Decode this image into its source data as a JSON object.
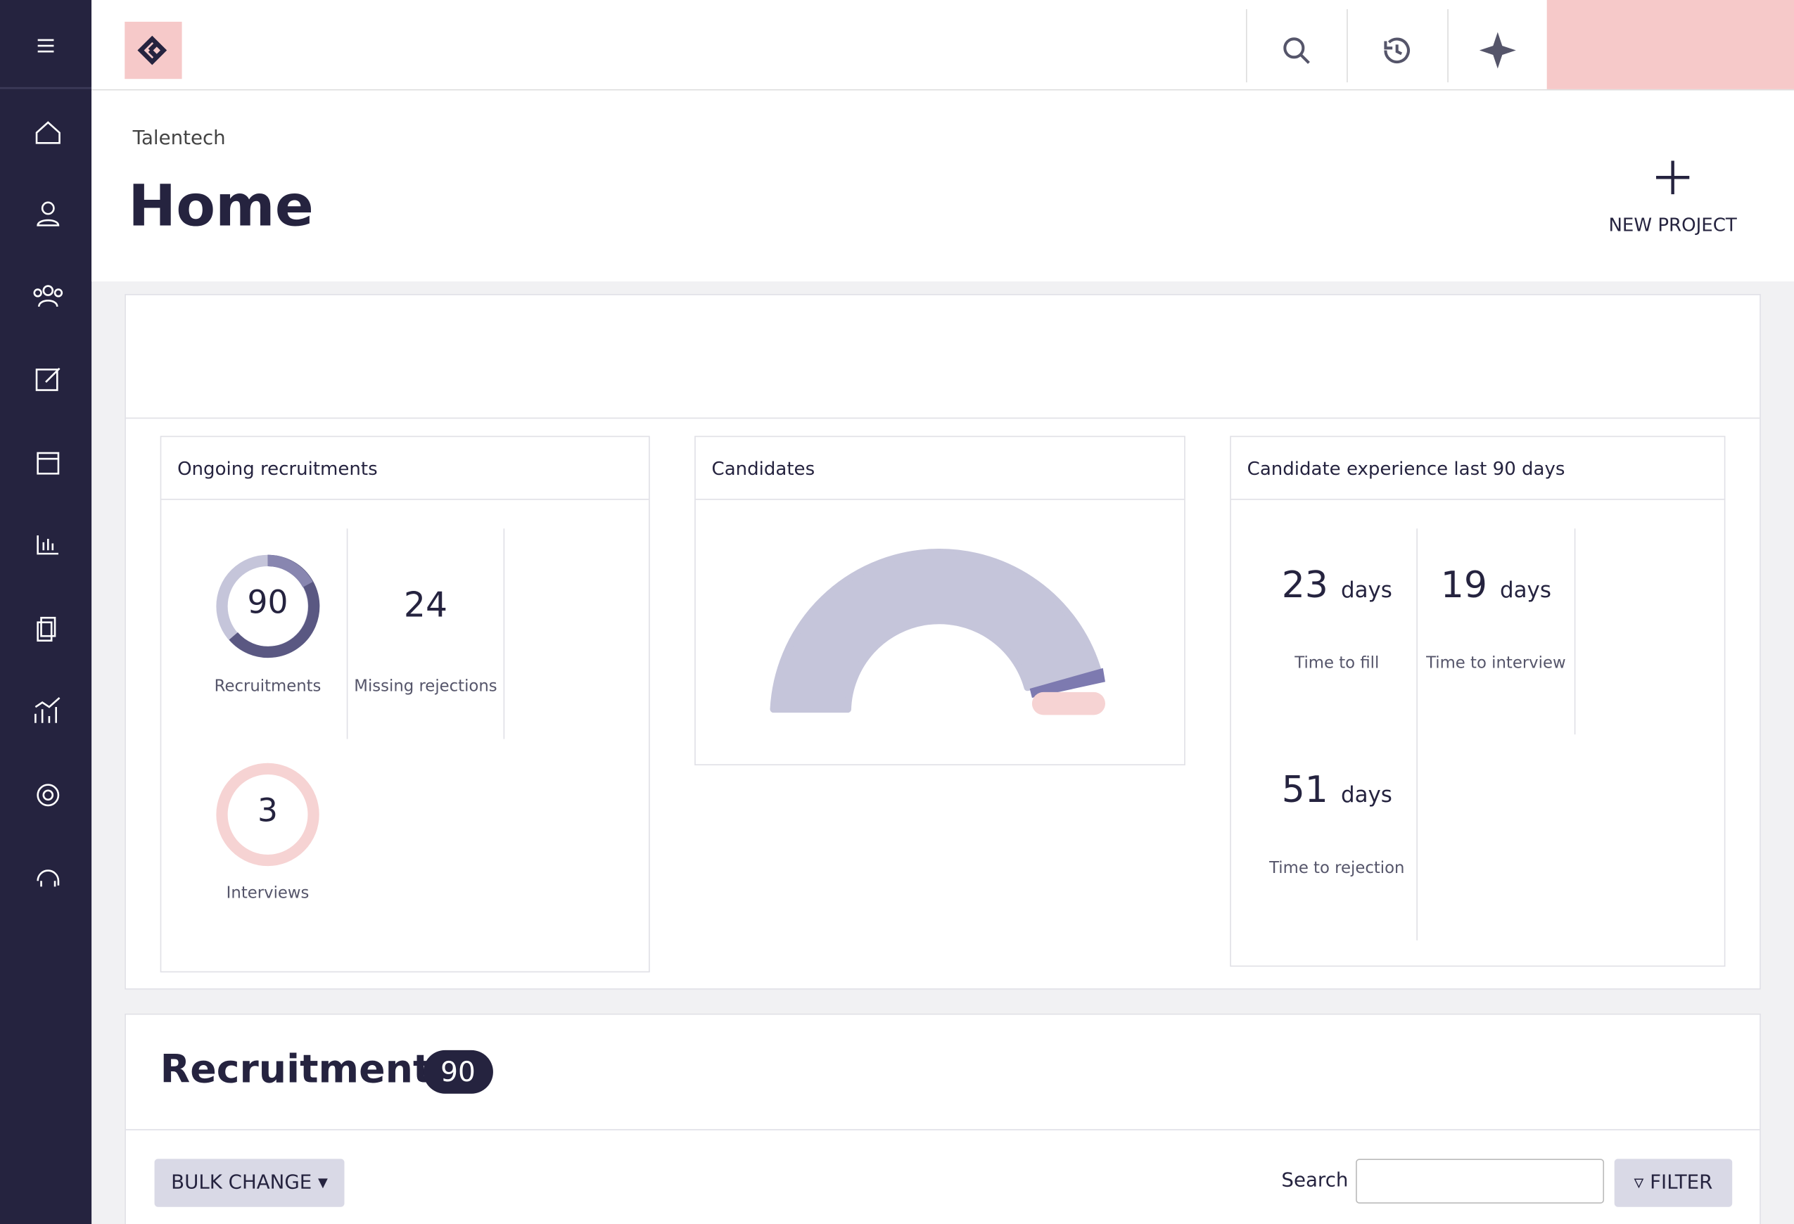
{
  "breadcrumb": "Talentech",
  "title": "Home",
  "new_project": "NEW PROJECT",
  "cards": [
    {
      "title": "Ongoing recruitments",
      "stats": [
        {
          "value": 90,
          "label": "Recruitments"
        },
        {
          "value": 24,
          "label": "Missing rejections"
        },
        {
          "value": 3,
          "label": "Interviews"
        }
      ]
    },
    {
      "title": "Candidates"
    },
    {
      "title": "Candidate experience last 90 days",
      "stats": [
        {
          "value": 23,
          "unit": "days",
          "label": "Time to fill"
        },
        {
          "value": 19,
          "unit": "days",
          "label": "Time to interview"
        },
        {
          "value": 51,
          "unit": "days",
          "label": "Time to rejection"
        }
      ]
    }
  ],
  "recruitments": {
    "title": "Recruitments",
    "count": 90
  },
  "bulk_change": "BULK CHANGE",
  "search_label": "Search",
  "filter": "FILTER"
}
